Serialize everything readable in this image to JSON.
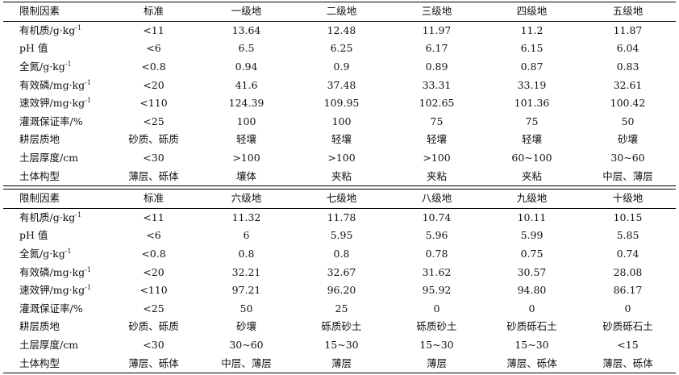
{
  "sections": [
    {
      "header": [
        "限制因素",
        "标准",
        "一级地",
        "二级地",
        "三级地",
        "四级地",
        "五级地"
      ],
      "rows": [
        {
          "label": "有机质/g·kg",
          "sup": "-1",
          "values": [
            "<11",
            "13.64",
            "12.48",
            "11.97",
            "11.2",
            "11.87"
          ]
        },
        {
          "label": "pH 值",
          "sup": "",
          "values": [
            "<6",
            "6.5",
            "6.25",
            "6.17",
            "6.15",
            "6.04"
          ]
        },
        {
          "label": "全氮/g·kg",
          "sup": "-1",
          "values": [
            "<0.8",
            "0.94",
            "0.9",
            "0.89",
            "0.87",
            "0.83"
          ]
        },
        {
          "label": "有效磷/mg·kg",
          "sup": "-1",
          "values": [
            "<20",
            "41.6",
            "37.48",
            "33.31",
            "33.19",
            "32.61"
          ]
        },
        {
          "label": "速效钾/mg·kg",
          "sup": "-1",
          "values": [
            "<110",
            "124.39",
            "109.95",
            "102.65",
            "101.36",
            "100.42"
          ]
        },
        {
          "label": "灌溉保证率/%",
          "sup": "",
          "values": [
            "<25",
            "100",
            "100",
            "75",
            "75",
            "50"
          ]
        },
        {
          "label": "耕层质地",
          "sup": "",
          "values": [
            "砂质、砾质",
            "轻壤",
            "轻壤",
            "轻壤",
            "轻壤",
            "砂壤"
          ]
        },
        {
          "label": "土层厚度/cm",
          "sup": "",
          "values": [
            "<30",
            ">100",
            ">100",
            ">100",
            "60~100",
            "30~60"
          ]
        },
        {
          "label": "土体构型",
          "sup": "",
          "values": [
            "薄层、砾体",
            "壤体",
            "夹粘",
            "夹粘",
            "夹粘",
            "中层、薄层"
          ]
        }
      ]
    },
    {
      "header": [
        "限制因素",
        "标准",
        "六级地",
        "七级地",
        "八级地",
        "九级地",
        "十级地"
      ],
      "rows": [
        {
          "label": "有机质/g·kg",
          "sup": "-1",
          "values": [
            "<11",
            "11.32",
            "11.78",
            "10.74",
            "10.11",
            "10.15"
          ]
        },
        {
          "label": "pH 值",
          "sup": "",
          "values": [
            "<6",
            "6",
            "5.95",
            "5.96",
            "5.99",
            "5.85"
          ]
        },
        {
          "label": "全氮/g·kg",
          "sup": "-1",
          "values": [
            "<0.8",
            "0.8",
            "0.8",
            "0.78",
            "0.75",
            "0.74"
          ]
        },
        {
          "label": "有效磷/mg·kg",
          "sup": "-1",
          "values": [
            "<20",
            "32.21",
            "32.67",
            "31.62",
            "30.57",
            "28.08"
          ]
        },
        {
          "label": "速效钾/mg·kg",
          "sup": "-1",
          "values": [
            "<110",
            "97.21",
            "96.20",
            "95.92",
            "94.80",
            "86.17"
          ]
        },
        {
          "label": "灌溉保证率/%",
          "sup": "",
          "values": [
            "<25",
            "50",
            "25",
            "0",
            "0",
            "0"
          ]
        },
        {
          "label": "耕层质地",
          "sup": "",
          "values": [
            "砂质、砾质",
            "砂壤",
            "砾质砂土",
            "砾质砂土",
            "砂质砾石土",
            "砂质砾石土"
          ]
        },
        {
          "label": "土层厚度/cm",
          "sup": "",
          "values": [
            "<30",
            "30~60",
            "15~30",
            "15~30",
            "15~30",
            "<15"
          ]
        },
        {
          "label": "土体构型",
          "sup": "",
          "values": [
            "薄层、砾体",
            "中层、薄层",
            "薄层",
            "薄层",
            "薄层、砾体",
            "薄层、砾体"
          ]
        }
      ]
    }
  ]
}
